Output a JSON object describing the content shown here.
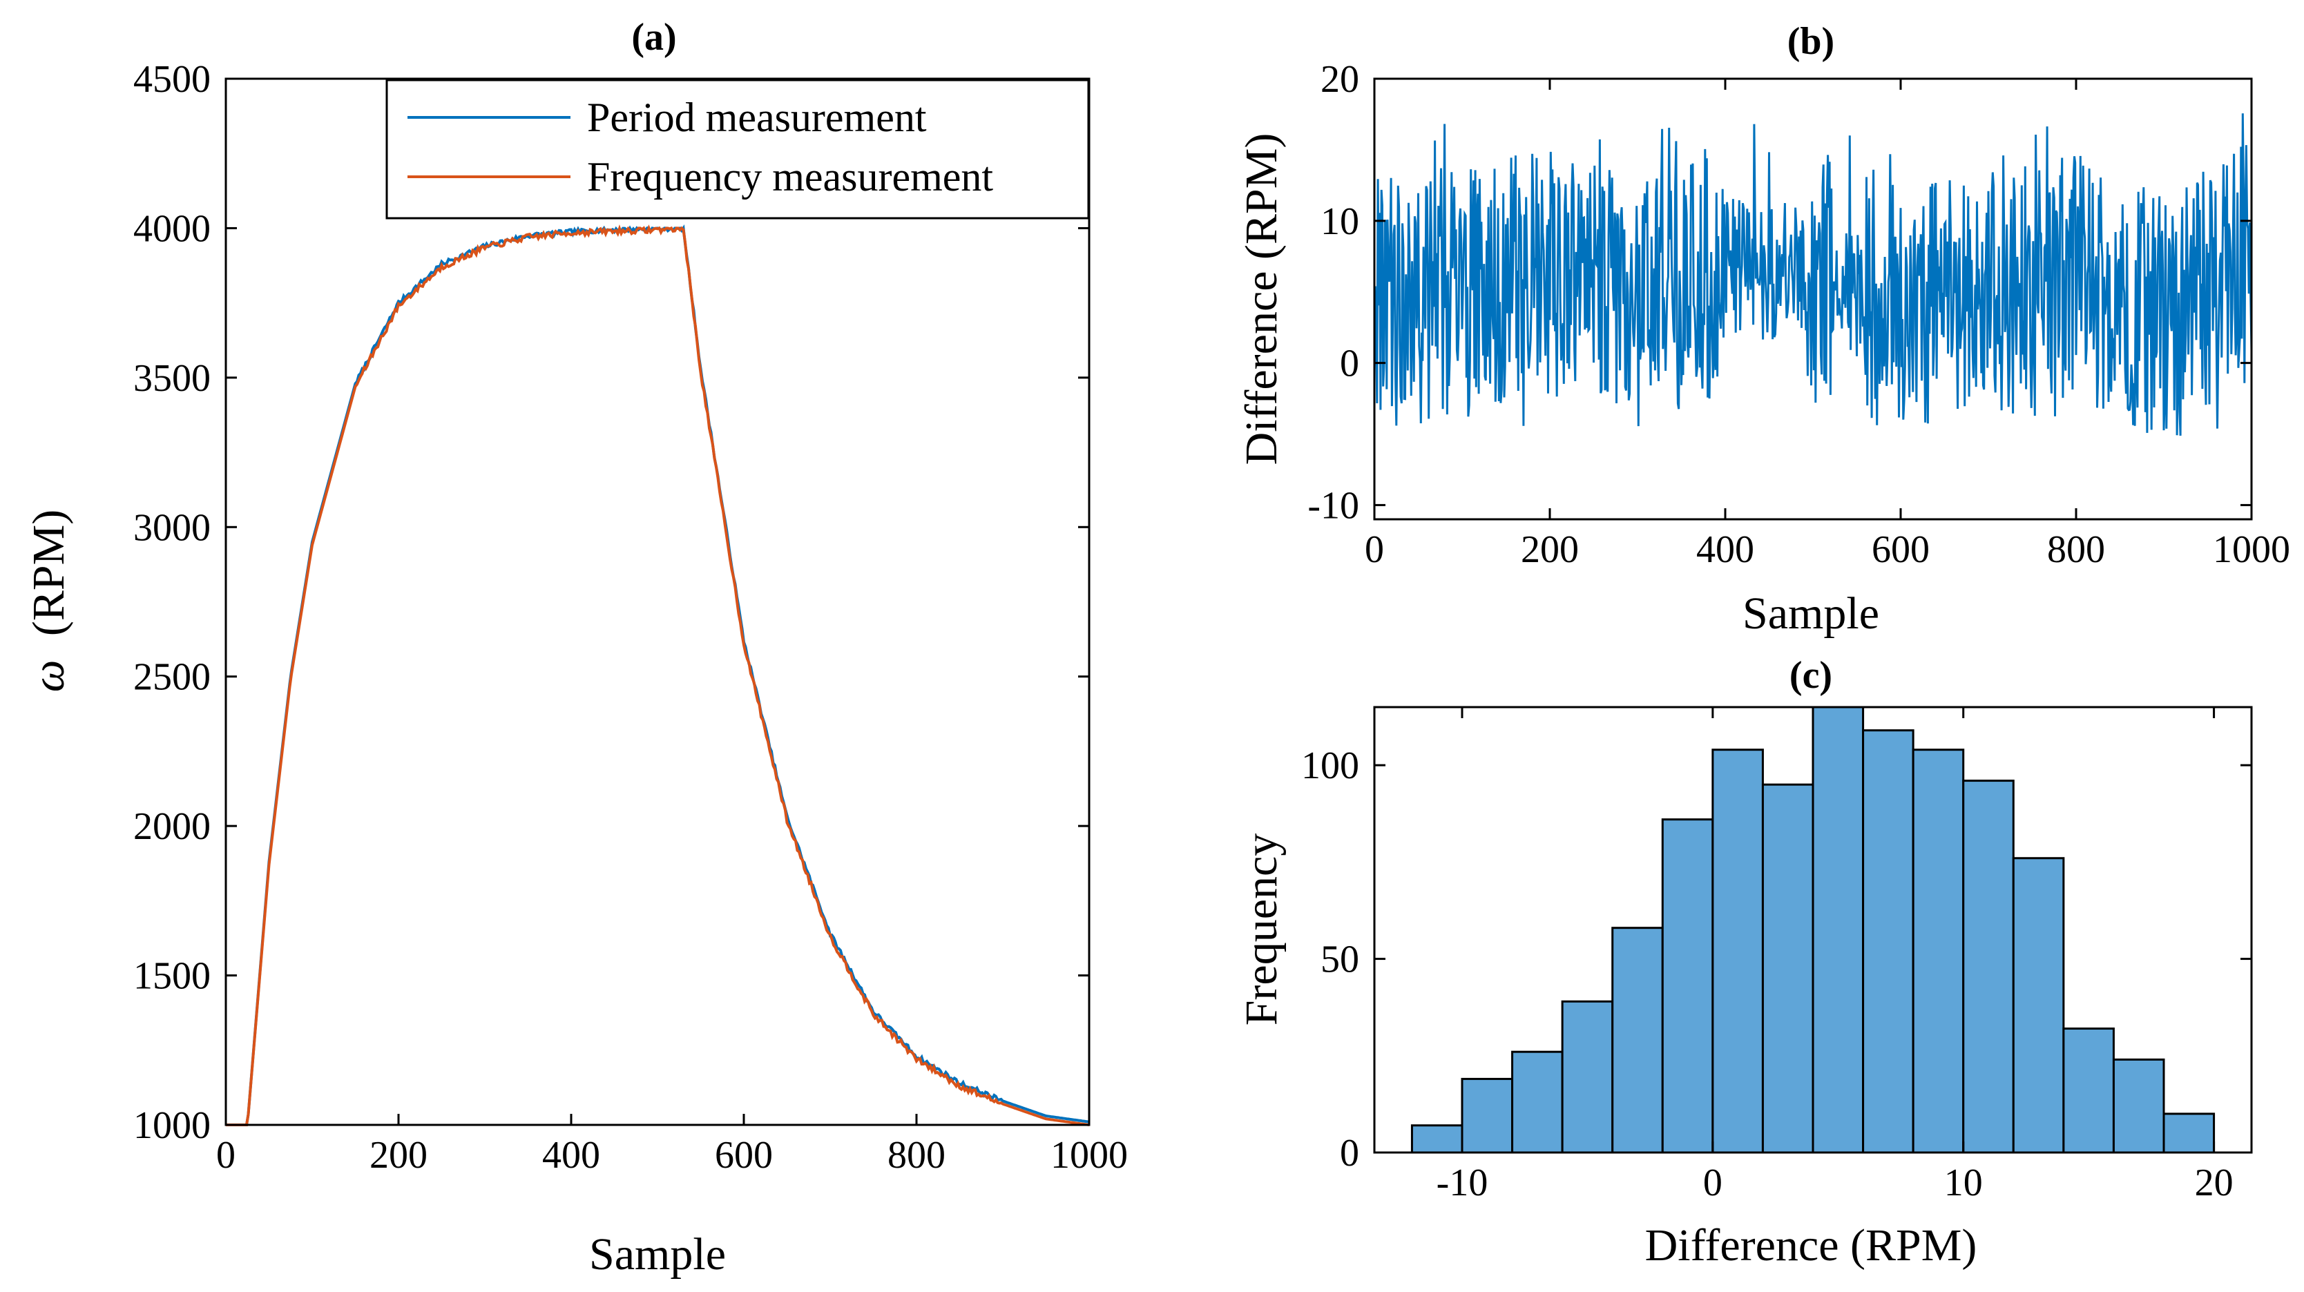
{
  "chart_data": [
    {
      "id": "a",
      "type": "line",
      "title": "(a)",
      "xlabel": "Sample",
      "ylabel_symbol": "ω",
      "ylabel": "(RPM)",
      "xlim": [
        0,
        1000
      ],
      "ylim": [
        1000,
        4500
      ],
      "xticks": [
        "0",
        "200",
        "400",
        "600",
        "800",
        "1000"
      ],
      "yticks": [
        "1000",
        "1500",
        "2000",
        "2500",
        "3000",
        "3500",
        "4000",
        "4500"
      ],
      "legend_position": "top-right",
      "series": [
        {
          "name": "Period measurement",
          "color": "#0072BD",
          "description": "1000 RPM until sample 25, exponential rise to 4000 RPM (time constant ~80 samples), hold to sample 530, exponential decay back to 1000 RPM (time constant ~115 samples)",
          "x": [
            0,
            25,
            50,
            75,
            100,
            150,
            200,
            250,
            300,
            350,
            400,
            450,
            500,
            530,
            550,
            600,
            650,
            700,
            750,
            800,
            850,
            900,
            950,
            1000
          ],
          "y": [
            1000,
            1000,
            1880,
            2500,
            2950,
            3480,
            3750,
            3880,
            3940,
            3975,
            3988,
            3995,
            3998,
            4000,
            3530,
            2620,
            2030,
            1640,
            1380,
            1230,
            1140,
            1080,
            1030,
            1010
          ]
        },
        {
          "name": "Frequency measurement",
          "color": "#D95319",
          "x": [
            0,
            25,
            50,
            75,
            100,
            150,
            200,
            250,
            300,
            350,
            400,
            450,
            500,
            530,
            550,
            600,
            650,
            700,
            750,
            800,
            850,
            900,
            950,
            1000
          ],
          "y": [
            1000,
            1000,
            1870,
            2490,
            2940,
            3470,
            3740,
            3870,
            3935,
            3970,
            3985,
            3990,
            3995,
            4000,
            3520,
            2610,
            2020,
            1630,
            1370,
            1220,
            1130,
            1070,
            1020,
            1000
          ]
        }
      ]
    },
    {
      "id": "b",
      "type": "line",
      "title": "(b)",
      "xlabel": "Sample",
      "ylabel": "Difference (RPM)",
      "xlim": [
        0,
        1000
      ],
      "ylim": [
        -11,
        20
      ],
      "xticks": [
        "0",
        "200",
        "400",
        "600",
        "800",
        "1000"
      ],
      "yticks": [
        "-10",
        "0",
        "10",
        "20"
      ],
      "series": [
        {
          "name": "Difference",
          "color": "#0072BD",
          "description": "Noisy difference signal, mostly between -10 and 19 RPM, with quieter stretches near samples 400-500 and 600 (values ~0-10)",
          "x": [
            0,
            100,
            200,
            300,
            400,
            500,
            600,
            700,
            800,
            900,
            1000
          ],
          "y": [
            4,
            5,
            6,
            4,
            7,
            6,
            4,
            5,
            6,
            3,
            7
          ]
        }
      ]
    },
    {
      "id": "c",
      "type": "bar",
      "title": "(c)",
      "xlabel": "Difference (RPM)",
      "ylabel": "Frequency",
      "xlim": [
        -13.5,
        21.5
      ],
      "ylim": [
        0,
        115
      ],
      "xticks": [
        "-10",
        "0",
        "10",
        "20"
      ],
      "yticks": [
        "0",
        "50",
        "100"
      ],
      "bin_width": 2,
      "bin_edges": [
        -12,
        -10,
        -8,
        -6,
        -4,
        -2,
        0,
        2,
        4,
        6,
        8,
        10,
        12,
        14,
        16,
        18,
        20
      ],
      "values": [
        7,
        19,
        26,
        39,
        58,
        86,
        104,
        95,
        115,
        109,
        104,
        96,
        76,
        32,
        24,
        10
      ],
      "bar_color": "#5FA5D8"
    }
  ]
}
